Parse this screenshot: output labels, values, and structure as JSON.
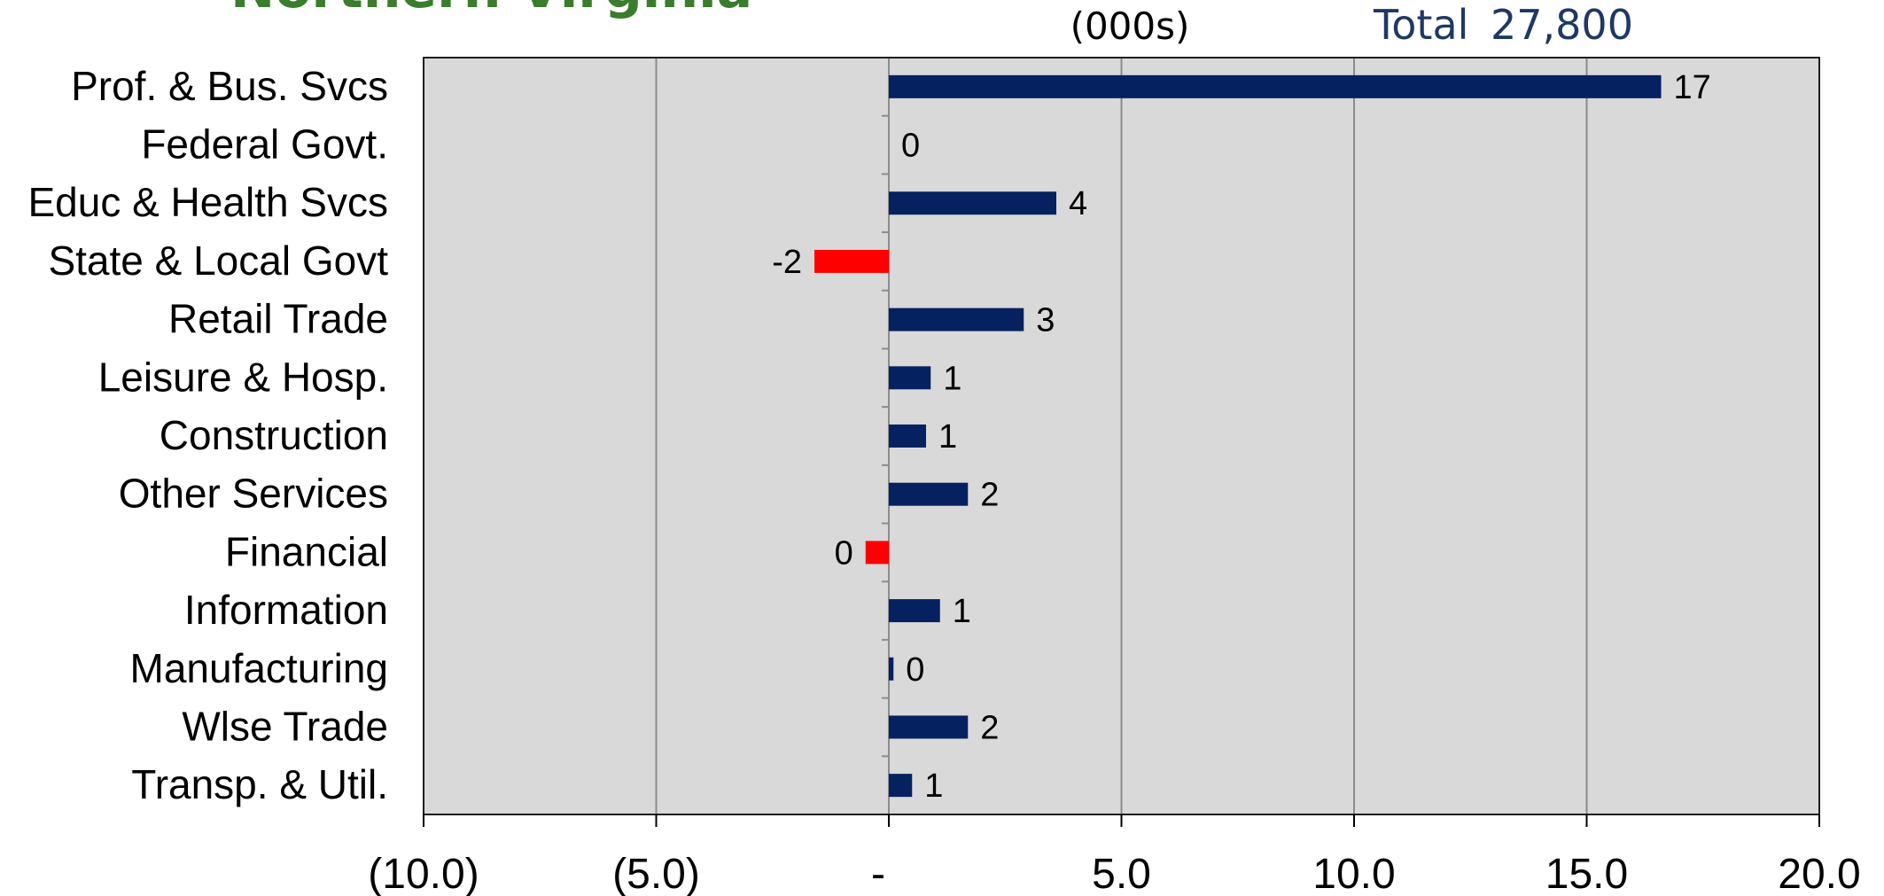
{
  "header": {
    "units": "(000s)",
    "total_label": "Total",
    "total_value": "27,800"
  },
  "colors": {
    "positive": "#062160",
    "negative": "#ff0000",
    "plot_bg": "#d9d9d9",
    "grid": "#8c8c8c",
    "total_text": "#1f3864",
    "title_text": "#3a7d2c"
  },
  "chart_data": {
    "type": "bar",
    "orientation": "horizontal",
    "categories": [
      "Prof. & Bus. Svcs",
      "Federal Govt.",
      "Educ & Health Svcs",
      "State & Local Govt",
      "Retail Trade",
      "Leisure & Hosp.",
      "Construction",
      "Other Services",
      "Financial",
      "Information",
      "Manufacturing",
      "Wlse Trade",
      "Transp. & Util."
    ],
    "values": [
      16.6,
      0.0,
      3.6,
      -1.6,
      2.9,
      0.9,
      0.8,
      1.7,
      -0.5,
      1.1,
      0.1,
      1.7,
      0.5
    ],
    "data_labels": [
      "17",
      "0",
      "4",
      "-2",
      "3",
      "1",
      "1",
      "2",
      "0",
      "1",
      "0",
      "2",
      "1"
    ],
    "xlim": [
      -10,
      20
    ],
    "xticks": [
      -10,
      -5,
      0,
      5,
      10,
      15,
      20
    ],
    "xtick_labels": [
      "(10.0)",
      "(5.0)",
      "-",
      "5.0",
      "10.0",
      "15.0",
      "20.0"
    ],
    "grid": true
  }
}
